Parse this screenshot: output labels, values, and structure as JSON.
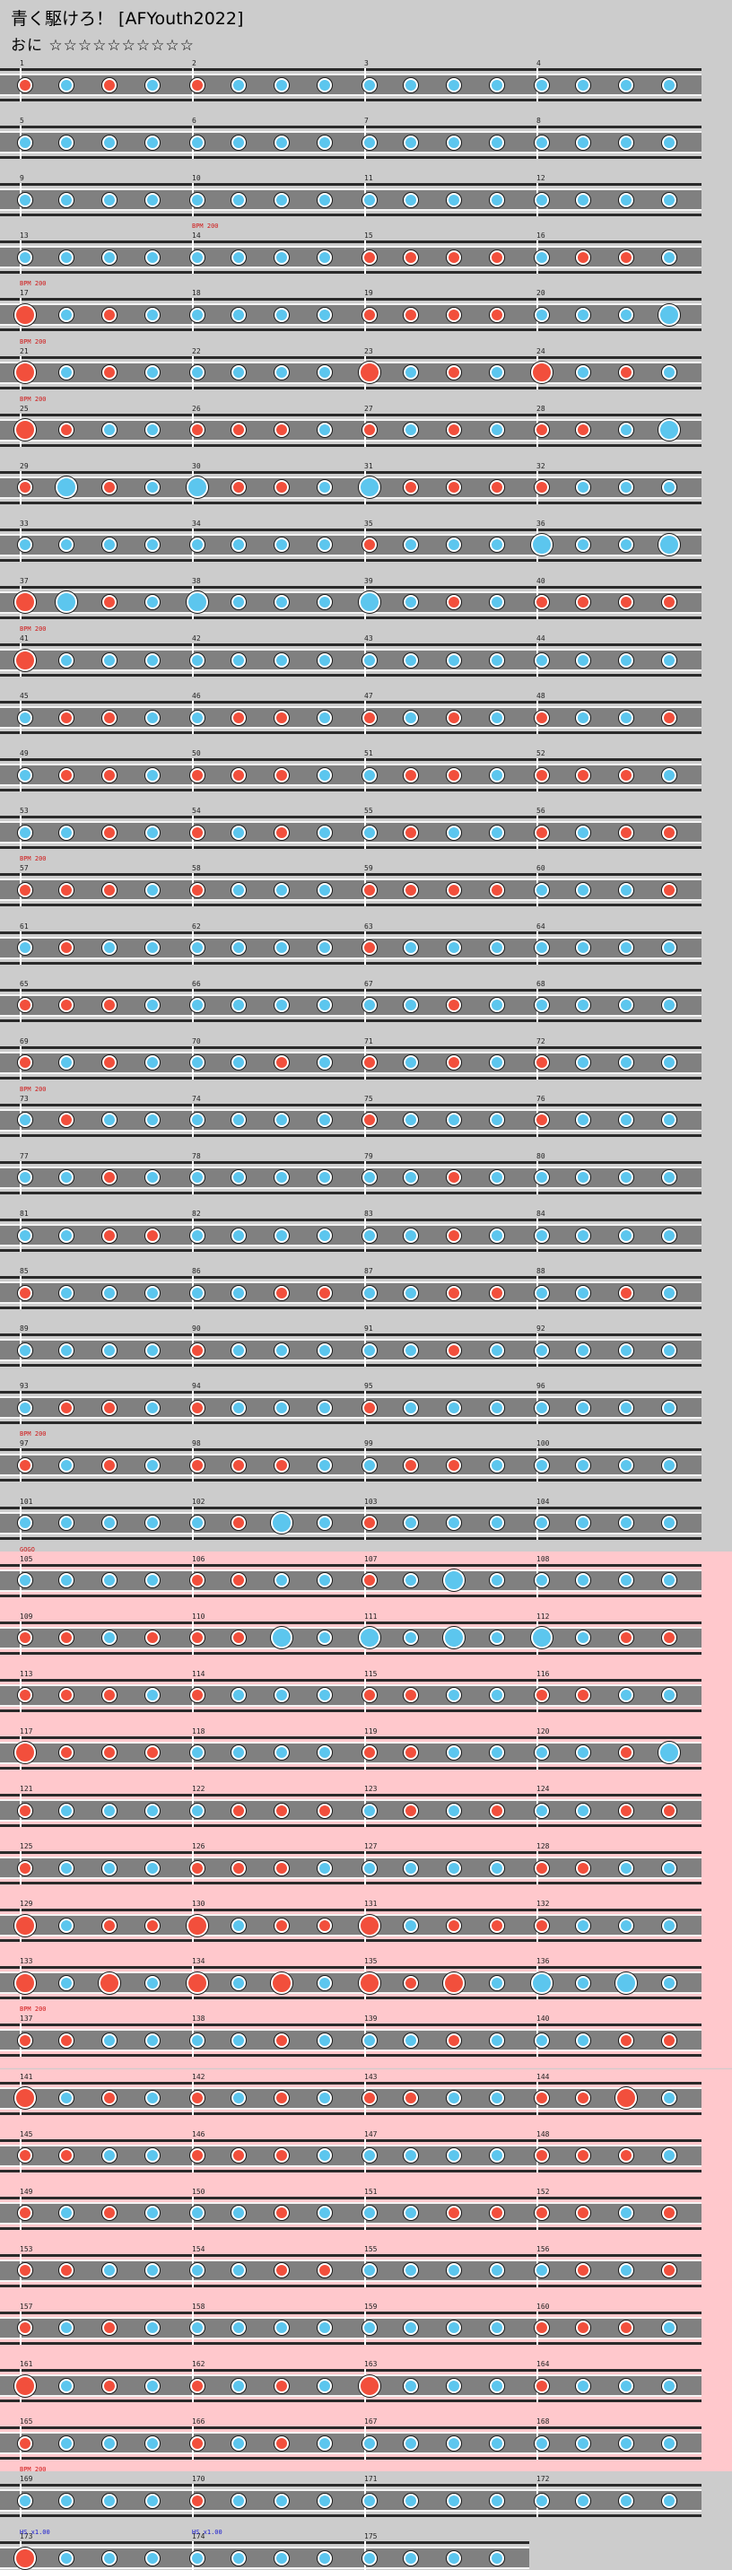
{
  "header": {
    "title": "青く駆けろ！ [AFYouth2022]",
    "course": "おに ☆☆☆☆☆☆☆☆☆☆"
  },
  "legend": {
    "don": "red note (Don)",
    "ka": "blue note (Ka)"
  },
  "colors": {
    "don": "#f24f3c",
    "ka": "#5cc6ee",
    "gogo_bg": "#ffc8cc",
    "lane": "#808080",
    "page_bg": "#cccccc"
  },
  "top_labels": {
    "bpm": "BPM 200",
    "hs": "HS x1.00"
  },
  "rows": [
    {
      "measures": [
        1,
        2,
        3,
        4
      ],
      "gogo": false,
      "events": []
    },
    {
      "measures": [
        5,
        6,
        7,
        8
      ],
      "gogo": false,
      "events": []
    },
    {
      "measures": [
        9,
        10,
        11,
        12
      ],
      "gogo": false,
      "events": []
    },
    {
      "measures": [
        13,
        14,
        15,
        16
      ],
      "gogo": false,
      "events": [
        {
          "type": "bpm",
          "text": "BPM 200",
          "measure_index": 1
        }
      ]
    },
    {
      "measures": [
        17,
        18,
        19,
        20
      ],
      "gogo": false,
      "events": [
        {
          "type": "bpm",
          "text": "BPM 200",
          "measure_index": 0
        }
      ]
    },
    {
      "measures": [
        21,
        22,
        23,
        24
      ],
      "gogo": false,
      "events": [
        {
          "type": "bpm",
          "text": "BPM 200",
          "measure_index": 0
        }
      ]
    },
    {
      "measures": [
        25,
        26,
        27,
        28
      ],
      "gogo": false,
      "events": [
        {
          "type": "bpm",
          "text": "BPM 200",
          "measure_index": 0
        }
      ]
    },
    {
      "measures": [
        29,
        30,
        31,
        32
      ],
      "gogo": false,
      "events": []
    },
    {
      "measures": [
        33,
        34,
        35,
        36
      ],
      "gogo": false,
      "events": []
    },
    {
      "measures": [
        37,
        38,
        39,
        40
      ],
      "gogo": false,
      "events": []
    },
    {
      "measures": [
        41,
        42,
        43,
        44
      ],
      "gogo": false,
      "events": [
        {
          "type": "bpm",
          "text": "BPM 200",
          "measure_index": 0
        }
      ]
    },
    {
      "measures": [
        45,
        46,
        47,
        48
      ],
      "gogo": false,
      "events": []
    },
    {
      "measures": [
        49,
        50,
        51,
        52
      ],
      "gogo": false,
      "events": []
    },
    {
      "measures": [
        53,
        54,
        55,
        56
      ],
      "gogo": false,
      "events": []
    },
    {
      "measures": [
        57,
        58,
        59,
        60
      ],
      "gogo": false,
      "events": [
        {
          "type": "bpm",
          "text": "BPM 200",
          "measure_index": 0
        }
      ]
    },
    {
      "measures": [
        61,
        62,
        63,
        64
      ],
      "gogo": false,
      "events": []
    },
    {
      "measures": [
        65,
        66,
        67,
        68
      ],
      "gogo": false,
      "events": []
    },
    {
      "measures": [
        69,
        70,
        71,
        72
      ],
      "gogo": false,
      "events": []
    },
    {
      "measures": [
        73,
        74,
        75,
        76
      ],
      "gogo": false,
      "events": [
        {
          "type": "bpm",
          "text": "BPM 200",
          "measure_index": 0
        }
      ]
    },
    {
      "measures": [
        77,
        78,
        79,
        80
      ],
      "gogo": false,
      "events": []
    },
    {
      "measures": [
        81,
        82,
        83,
        84
      ],
      "gogo": false,
      "events": []
    },
    {
      "measures": [
        85,
        86,
        87,
        88
      ],
      "gogo": false,
      "events": []
    },
    {
      "measures": [
        89,
        90,
        91,
        92
      ],
      "gogo": false,
      "events": []
    },
    {
      "measures": [
        93,
        94,
        95,
        96
      ],
      "gogo": false,
      "events": []
    },
    {
      "measures": [
        97,
        98,
        99,
        100
      ],
      "gogo": false,
      "events": [
        {
          "type": "bpm",
          "text": "BPM 200",
          "measure_index": 0
        }
      ]
    },
    {
      "measures": [
        101,
        102,
        103,
        104
      ],
      "gogo": false,
      "events": []
    },
    {
      "measures": [
        105,
        106,
        107,
        108
      ],
      "gogo": true,
      "events": [
        {
          "type": "gogo",
          "text": "GOGO",
          "measure_index": 0
        }
      ]
    },
    {
      "measures": [
        109,
        110,
        111,
        112
      ],
      "gogo": true,
      "events": []
    },
    {
      "measures": [
        113,
        114,
        115,
        116
      ],
      "gogo": true,
      "events": []
    },
    {
      "measures": [
        117,
        118,
        119,
        120
      ],
      "gogo": true,
      "events": []
    },
    {
      "measures": [
        121,
        122,
        123,
        124
      ],
      "gogo": true,
      "events": []
    },
    {
      "measures": [
        125,
        126,
        127,
        128
      ],
      "gogo": true,
      "events": []
    },
    {
      "measures": [
        129,
        130,
        131,
        132
      ],
      "gogo": true,
      "events": []
    },
    {
      "measures": [
        133,
        134,
        135,
        136
      ],
      "gogo": true,
      "events": []
    },
    {
      "measures": [
        137,
        138,
        139,
        140
      ],
      "gogo": true,
      "events": [
        {
          "type": "bpm",
          "text": "BPM 200",
          "measure_index": 0
        }
      ]
    },
    {
      "measures": [
        141,
        142,
        143,
        144
      ],
      "gogo": true,
      "events": []
    },
    {
      "measures": [
        145,
        146,
        147,
        148
      ],
      "gogo": true,
      "events": []
    },
    {
      "measures": [
        149,
        150,
        151,
        152
      ],
      "gogo": true,
      "events": []
    },
    {
      "measures": [
        153,
        154,
        155,
        156
      ],
      "gogo": true,
      "events": []
    },
    {
      "measures": [
        157,
        158,
        159,
        160
      ],
      "gogo": true,
      "events": []
    },
    {
      "measures": [
        161,
        162,
        163,
        164
      ],
      "gogo": true,
      "events": []
    },
    {
      "measures": [
        165,
        166,
        167,
        168
      ],
      "gogo": true,
      "events": []
    },
    {
      "measures": [
        169,
        170,
        171,
        172
      ],
      "gogo": false,
      "events": [
        {
          "type": "bpm",
          "text": "BPM 200",
          "measure_index": 0
        }
      ]
    },
    {
      "measures": [
        173,
        174,
        175
      ],
      "gogo": false,
      "events": [
        {
          "type": "hs",
          "text": "HS x1.00",
          "measure_index": 0
        },
        {
          "type": "hs",
          "text": "HS x1.00",
          "measure_index": 1
        }
      ]
    }
  ],
  "notes": [
    "dkdkdkkkkkkkkkkk",
    "kkkkkkkkkkkkkkkk",
    "kkkkkkkkkkkkkkkk",
    "kkkkkkkkddddkddk",
    "DkdkkkkkddddkkkK",
    "DkdkkkkkDkdkDkdk",
    "DdkkdddkdkdkddkK",
    "dKdkKddkKddddkkk",
    "kkkkkkkkdkkkKkkK",
    "DKdkKkkkKkdkdddd",
    "Dkkkkkkkkkkkkkkk",
    "kddkkddkdkdkdkkd",
    "kddkdddkkddkdddk",
    "kkdkdkdkkdkkdkdd",
    "dddkdkkkddddkkkd",
    "kdkkkkkkdkkkkkkk",
    "dddkkkkkkkdkkkkk",
    "dkdkkkdkdkdkdkkk",
    "kdkkkkkkdkkkdkkk",
    "kkdkkkkkkkdkkkkk",
    "kkddkkkkkkdkkkkk",
    "dkkkkkddkkddkkdk",
    "kkkkdkkkkkdkkkkk",
    "kddkdkkkdkkkkkkk",
    "dkdkdddkkddkkkkk",
    "kkkkkdKkdkkkkkkk",
    "kkkkddkkdkKkkkkk",
    "ddkdddKkKkKkKkdd",
    "dddkdkkkddkkddkk",
    "DdddkkkkddkkkkdK",
    "dkkkkdddkdkdkkdd",
    "dkkkdddkkkkkddkk",
    "DkddDkddDkdddkkk",
    "DkDkDkDkDdDkKkKk",
    "ddkkkkdkkkdkkkdd",
    "DkdkdkdkddkkddDk",
    "ddkkdddkkkkkdddk",
    "dkdkkkdkkkddddkd",
    "ddkkkkddkkkkkdkd",
    "dkdkkkkkkkkkdddk",
    "DkdkdkdkDkkkdkkk",
    "dkkkdkdkkkkkkkkk",
    "kkkkdkkkkkkkkkkk",
    "Dkkkkkkkkkkk"
  ]
}
